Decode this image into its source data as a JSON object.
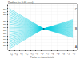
{
  "chart_data": {
    "type": "line",
    "title": "Radius (in 0.01 mm)",
    "xlabel": "Factor in characteristic",
    "x": [
      -1.0,
      0.3,
      1.4
    ],
    "color": "#00ccdd",
    "series": [
      {
        "values": [
          266.0,
          279.0,
          273.15
        ]
      },
      {
        "values": [
          267.0,
          279.0,
          273.6
        ]
      },
      {
        "values": [
          268.0,
          279.0,
          274.05
        ]
      },
      {
        "values": [
          269.0,
          279.0,
          274.5
        ]
      },
      {
        "values": [
          270.0,
          279.0,
          274.95
        ]
      },
      {
        "values": [
          271.0,
          279.0,
          275.4
        ]
      },
      {
        "values": [
          272.0,
          279.0,
          275.85
        ]
      },
      {
        "values": [
          273.0,
          279.0,
          276.3
        ]
      },
      {
        "values": [
          274.0,
          279.0,
          276.75
        ]
      },
      {
        "values": [
          275.0,
          279.0,
          277.2
        ]
      },
      {
        "values": [
          276.0,
          279.0,
          277.65
        ]
      },
      {
        "values": [
          277.0,
          279.0,
          278.1
        ]
      },
      {
        "values": [
          278.0,
          279.0,
          278.55
        ]
      },
      {
        "values": [
          279.0,
          279.0,
          279.0
        ]
      },
      {
        "values": [
          280.0,
          279.0,
          279.45
        ]
      },
      {
        "values": [
          281.0,
          279.0,
          279.9
        ]
      },
      {
        "values": [
          282.0,
          279.0,
          280.35
        ]
      },
      {
        "values": [
          283.0,
          279.0,
          280.8
        ]
      },
      {
        "values": [
          284.0,
          279.0,
          281.25
        ]
      },
      {
        "values": [
          285.0,
          279.0,
          281.7
        ]
      },
      {
        "values": [
          286.0,
          279.0,
          282.15
        ]
      },
      {
        "values": [
          287.0,
          279.0,
          282.6
        ]
      },
      {
        "values": [
          288.0,
          279.0,
          283.05
        ]
      },
      {
        "values": [
          289.0,
          279.0,
          283.5
        ]
      },
      {
        "values": [
          290.0,
          279.0,
          283.95
        ]
      },
      {
        "values": [
          291.0,
          279.0,
          284.4
        ]
      },
      {
        "values": [
          292.0,
          279.0,
          284.85
        ]
      },
      {
        "type": "scatter",
        "marker": "circle",
        "color": "#006688",
        "values": [
          null,
          279.0,
          null
        ]
      }
    ],
    "annotations": [
      {
        "text": "C",
        "x": 1.42,
        "y": 291.5
      },
      {
        "text": "B",
        "x": 1.42,
        "y": 279.0
      },
      {
        "text": "A",
        "x": 1.42,
        "y": 267.0
      }
    ],
    "xlim": [
      -1.05,
      1.55
    ],
    "ylim": [
      265.0,
      295.0
    ],
    "xticks": [
      {
        "value": -1.0,
        "label": "−1.0"
      },
      -0.8,
      -0.6,
      -0.4,
      -0.2,
      {
        "value": 0.0,
        "label": "0.0"
      },
      0.2,
      0.4,
      0.6,
      0.8,
      {
        "value": 1.0,
        "label": "1.0"
      },
      1.2,
      1.4
    ],
    "yticks": [
      266,
      268,
      270,
      272,
      274,
      276,
      278,
      280,
      282,
      284,
      286,
      288,
      290,
      292,
      294
    ],
    "grid": true
  }
}
